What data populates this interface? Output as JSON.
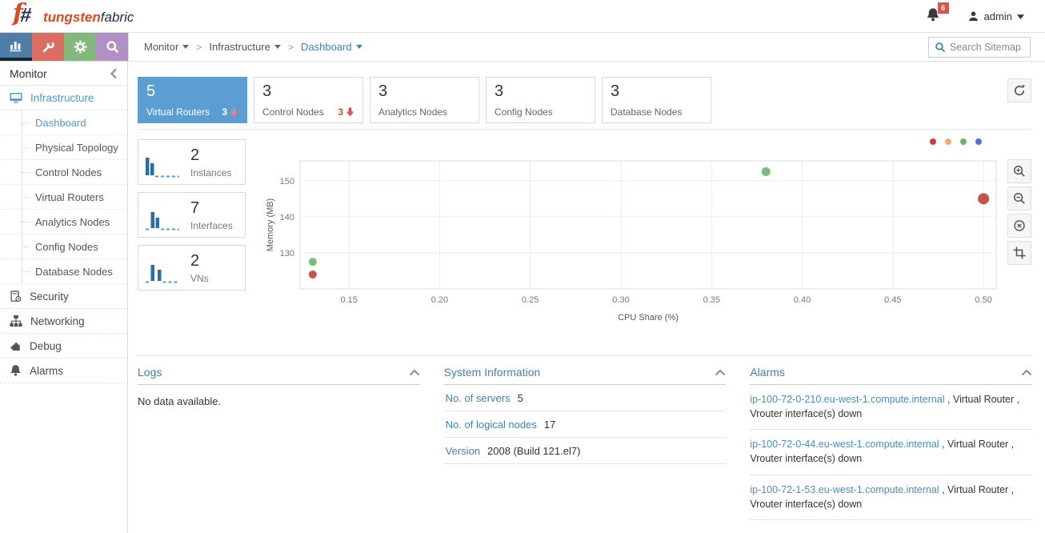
{
  "header": {
    "logo_bold": "tungsten",
    "logo_light": "fabric",
    "notification_count": "6",
    "user_name": "admin"
  },
  "navbar": {
    "breadcrumb": [
      "Monitor",
      "Infrastructure",
      "Dashboard"
    ],
    "separator": ">",
    "search_placeholder": "Search Sitemap"
  },
  "sidebar": {
    "title": "Monitor",
    "groups": [
      {
        "label": "Infrastructure",
        "children": [
          "Dashboard",
          "Physical Topology",
          "Control Nodes",
          "Virtual Routers",
          "Analytics Nodes",
          "Config Nodes",
          "Database Nodes"
        ]
      },
      {
        "label": "Security"
      },
      {
        "label": "Networking"
      },
      {
        "label": "Debug"
      },
      {
        "label": "Alarms"
      }
    ]
  },
  "stat_cards": [
    {
      "value": "5",
      "label": "Virtual Routers",
      "alert": "3"
    },
    {
      "value": "3",
      "label": "Control Nodes",
      "alert": "3"
    },
    {
      "value": "3",
      "label": "Analytics Nodes"
    },
    {
      "value": "3",
      "label": "Config Nodes"
    },
    {
      "value": "3",
      "label": "Database Nodes"
    }
  ],
  "mini_cards": [
    {
      "value": "2",
      "label": "Instances"
    },
    {
      "value": "7",
      "label": "Interfaces"
    },
    {
      "value": "2",
      "label": "VNs"
    }
  ],
  "chart_data": {
    "type": "scatter",
    "xlabel": "CPU Share (%)",
    "ylabel": "Memory (MB)",
    "xlim": [
      0.123,
      0.507
    ],
    "ylim": [
      120,
      155.5
    ],
    "xticks": [
      0.15,
      0.2,
      0.25,
      0.3,
      0.35,
      0.4,
      0.45,
      0.5
    ],
    "yticks": [
      130,
      140,
      150
    ],
    "grid": true,
    "legend": {
      "position": "top-right",
      "colors": [
        "#c0443c",
        "#f4a968",
        "#6db36d",
        "#4d72d0"
      ]
    },
    "series": [
      {
        "name": "red",
        "color": "#c0443c",
        "points": [
          {
            "x": 0.13,
            "y": 124,
            "r": 5
          },
          {
            "x": 0.5,
            "y": 145,
            "r": 7
          }
        ]
      },
      {
        "name": "green",
        "color": "#72b572",
        "points": [
          {
            "x": 0.13,
            "y": 127.5,
            "r": 5
          },
          {
            "x": 0.38,
            "y": 152.5,
            "r": 5.5
          }
        ]
      }
    ]
  },
  "panels": {
    "logs": {
      "title": "Logs",
      "empty_text": "No data available."
    },
    "system_info": {
      "title": "System Information",
      "rows": [
        {
          "label": "No. of servers",
          "value": "5"
        },
        {
          "label": "No. of logical nodes",
          "value": "17"
        },
        {
          "label": "Version",
          "value": "2008 (Build 121.el7)"
        }
      ]
    },
    "alarms": {
      "title": "Alarms",
      "items": [
        {
          "link": "ip-100-72-0-210.eu-west-1.compute.internal",
          "text": " , Virtual Router , Vrouter interface(s) down"
        },
        {
          "link": "ip-100-72-0-44.eu-west-1.compute.internal",
          "text": " , Virtual Router , Vrouter interface(s) down"
        },
        {
          "link": "ip-100-72-1-53.eu-west-1.compute.internal",
          "text": " , Virtual Router , Vrouter interface(s) down"
        }
      ]
    }
  }
}
